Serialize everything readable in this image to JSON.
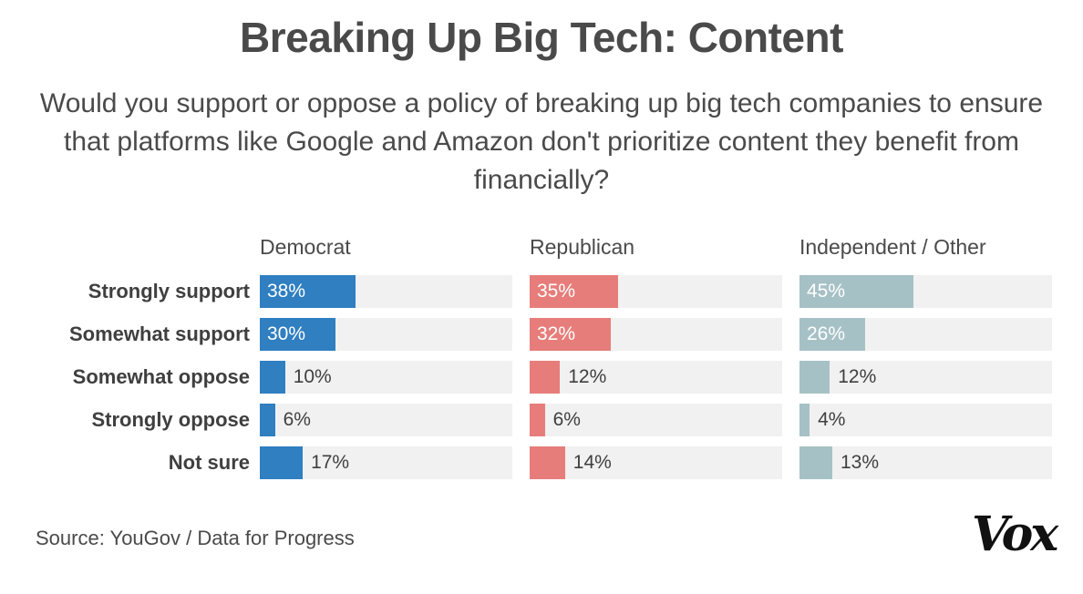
{
  "chart_data": {
    "type": "bar",
    "title": "Breaking Up Big Tech: Content",
    "subtitle": "Would you support or oppose a policy of breaking up big tech companies to ensure that platforms like Google and Amazon don't prioritize content they benefit from financially?",
    "categories": [
      "Strongly support",
      "Somewhat support",
      "Somewhat oppose",
      "Strongly oppose",
      "Not sure"
    ],
    "series": [
      {
        "name": "Democrat",
        "values": [
          38,
          30,
          10,
          6,
          17
        ],
        "labels": [
          "38%",
          "30%",
          "10%",
          "6%",
          "17%"
        ],
        "color": "#2f7fc1"
      },
      {
        "name": "Republican",
        "values": [
          35,
          32,
          12,
          6,
          14
        ],
        "labels": [
          "35%",
          "32%",
          "12%",
          "6%",
          "14%"
        ],
        "color": "#e77d7a"
      },
      {
        "name": "Independent / Other",
        "values": [
          45,
          26,
          12,
          4,
          13
        ],
        "labels": [
          "45%",
          "26%",
          "12%",
          "4%",
          "13%"
        ],
        "color": "#a6c1c6"
      }
    ],
    "xlim": [
      0,
      100
    ],
    "track_color": "#f1f1f1",
    "source": "Source: YouGov / Data for Progress",
    "logo_text": "Vox"
  }
}
